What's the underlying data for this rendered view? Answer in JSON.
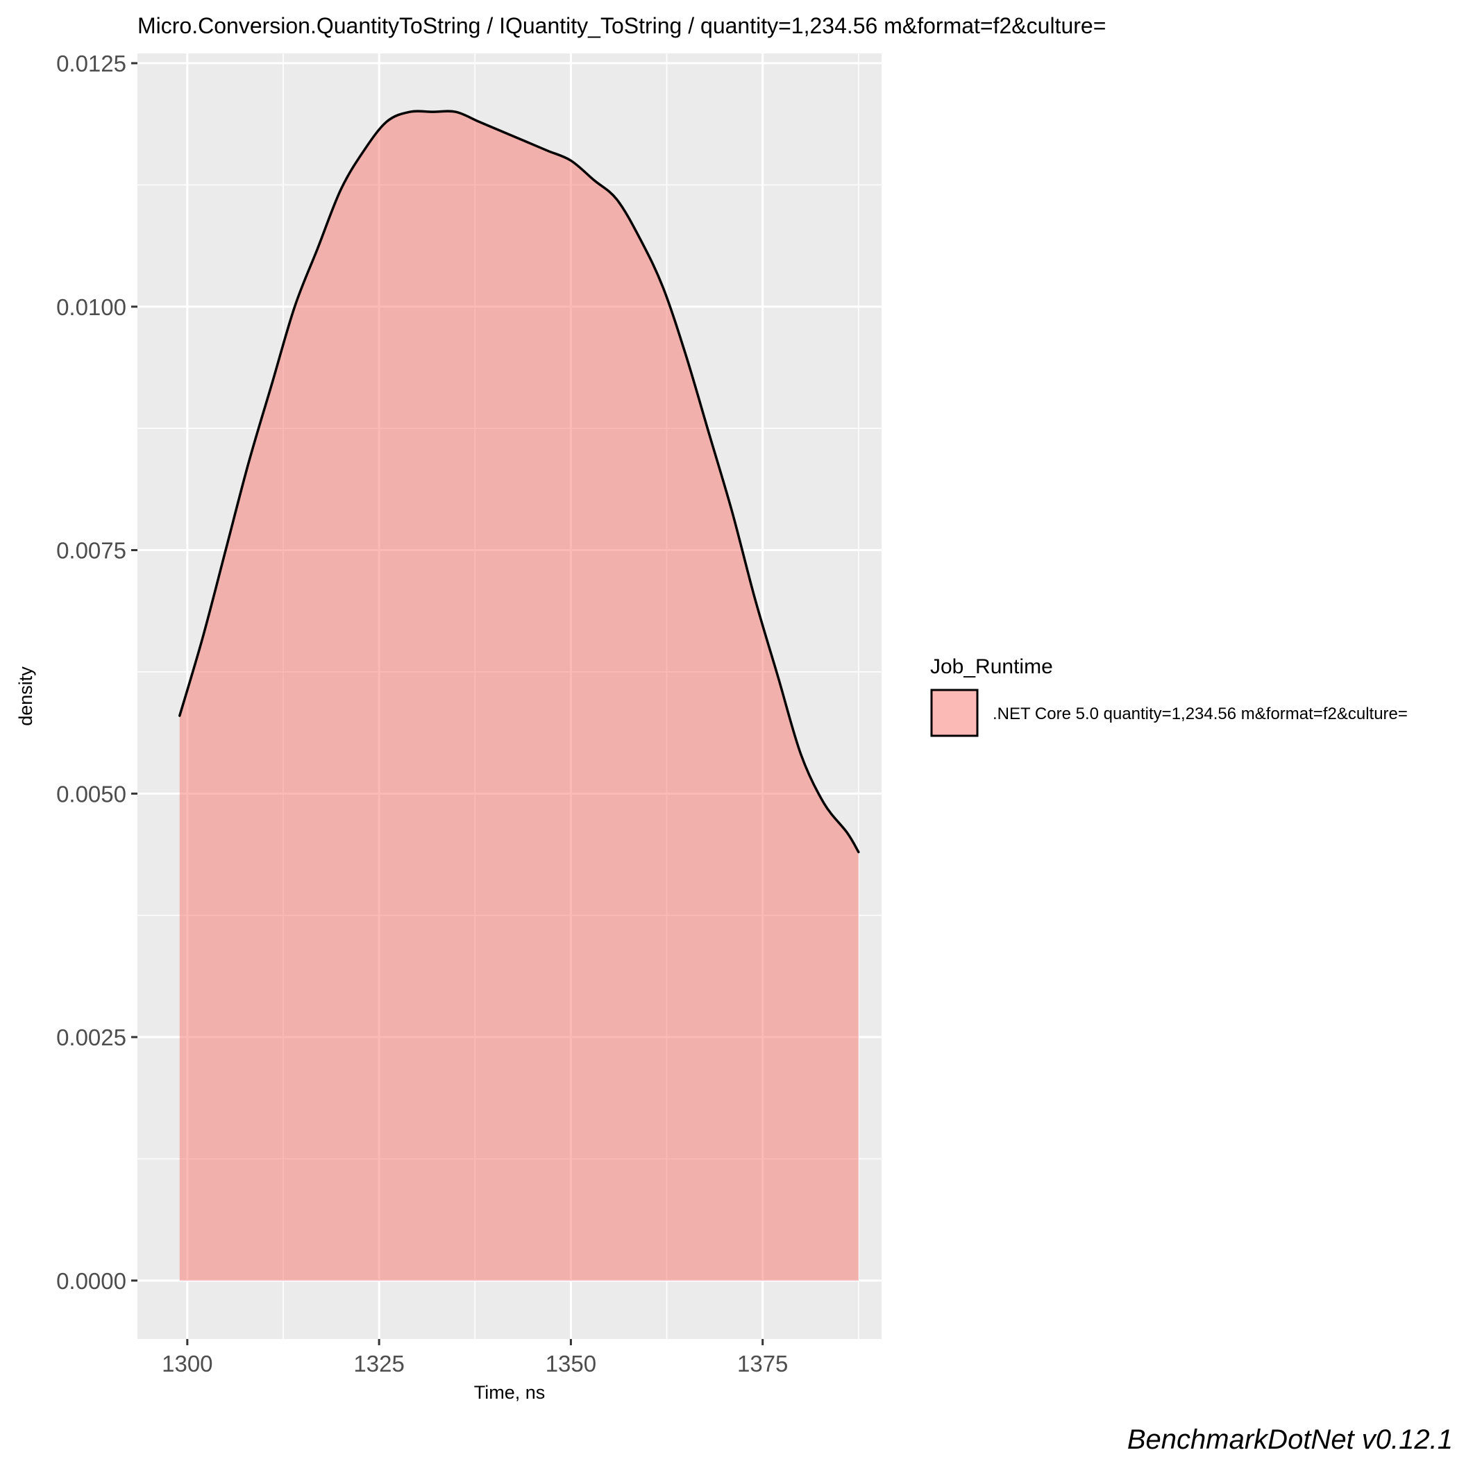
{
  "chart_data": {
    "type": "area",
    "subtype": "density",
    "title": "Micro.Conversion.QuantityToString / IQuantity_ToString / quantity=1,234.56 m&format=f2&culture=",
    "xlabel": "Time, ns",
    "ylabel": "density",
    "xlim": [
      1293.5,
      1390.5
    ],
    "ylim": [
      -0.0006,
      0.0126
    ],
    "x_ticks": [
      1300,
      1325,
      1350,
      1375
    ],
    "x_tick_labels": [
      "1300",
      "1325",
      "1350",
      "1375"
    ],
    "y_ticks": [
      0.0,
      0.0025,
      0.005,
      0.0075,
      0.01,
      0.0125
    ],
    "y_tick_labels": [
      "0.0000",
      "0.0025",
      "0.0050",
      "0.0075",
      "0.0100",
      "0.0125"
    ],
    "grid": true,
    "legend": {
      "title": "Job_Runtime",
      "position": "right"
    },
    "series": [
      {
        "name": ".NET Core 5.0 quantity=1,234.56 m&format=f2&culture=",
        "fill": "#F8766D",
        "fill_opacity": 0.5,
        "line_color": "#000000",
        "x": [
          1299.0,
          1302.0,
          1305.0,
          1308.0,
          1311.0,
          1314.0,
          1317.0,
          1320.0,
          1323.0,
          1326.0,
          1329.0,
          1332.0,
          1335.0,
          1338.0,
          1341.0,
          1344.0,
          1347.0,
          1350.0,
          1353.0,
          1356.0,
          1359.0,
          1362.0,
          1365.0,
          1368.0,
          1371.0,
          1374.0,
          1377.0,
          1380.0,
          1383.0,
          1386.0,
          1387.5
        ],
        "y": [
          0.0058,
          0.0066,
          0.0075,
          0.0084,
          0.0092,
          0.01,
          0.0106,
          0.0112,
          0.0116,
          0.0119,
          0.012,
          0.012,
          0.012,
          0.0119,
          0.0118,
          0.0117,
          0.0116,
          0.0115,
          0.0113,
          0.0111,
          0.0107,
          0.0102,
          0.0095,
          0.0087,
          0.0079,
          0.007,
          0.0062,
          0.0054,
          0.0049,
          0.0046,
          0.0044
        ]
      }
    ]
  },
  "watermark": "BenchmarkDotNet v0.12.1",
  "colors": {
    "panel_background": "#EBEBEB",
    "grid_major": "#FFFFFF",
    "tick_text": "#4d4d4d"
  }
}
